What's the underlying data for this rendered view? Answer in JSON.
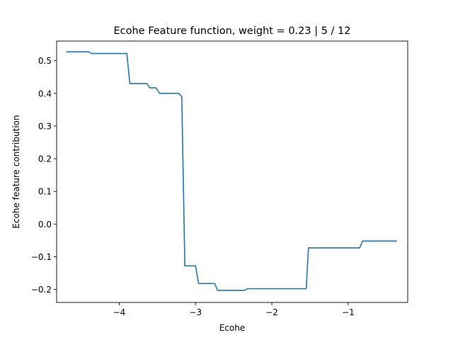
{
  "chart_data": {
    "type": "line",
    "title": "Ecohe Feature function, weight = 0.23 | 5 / 12",
    "xlabel": "Ecohe",
    "ylabel": "Ecohe feature contribution",
    "xlim": [
      -4.82,
      -0.22
    ],
    "ylim": [
      -0.24,
      0.56
    ],
    "xticks": [
      {
        "value": -4,
        "label": "−4"
      },
      {
        "value": -3,
        "label": "−3"
      },
      {
        "value": -2,
        "label": "−2"
      },
      {
        "value": -1,
        "label": "−1"
      }
    ],
    "yticks": [
      {
        "value": -0.2,
        "label": "−0.2"
      },
      {
        "value": -0.1,
        "label": "−0.1"
      },
      {
        "value": 0.0,
        "label": "0.0"
      },
      {
        "value": 0.1,
        "label": "0.1"
      },
      {
        "value": 0.2,
        "label": "0.2"
      },
      {
        "value": 0.3,
        "label": "0.3"
      },
      {
        "value": 0.4,
        "label": "0.4"
      },
      {
        "value": 0.5,
        "label": "0.5"
      }
    ],
    "grid": false,
    "series": [
      {
        "color": "#1f77b4",
        "x": [
          -4.69,
          -4.4,
          -4.36,
          -3.9,
          -3.86,
          -3.64,
          -3.6,
          -3.52,
          -3.47,
          -3.22,
          -3.18,
          -3.14,
          -3.0,
          -2.96,
          -2.75,
          -2.71,
          -2.36,
          -2.32,
          -1.55,
          -1.52,
          -0.85,
          -0.81,
          -0.36
        ],
        "y": [
          0.527,
          0.527,
          0.522,
          0.522,
          0.43,
          0.43,
          0.417,
          0.417,
          0.4,
          0.4,
          0.39,
          -0.128,
          -0.128,
          -0.182,
          -0.182,
          -0.203,
          -0.203,
          -0.198,
          -0.198,
          -0.073,
          -0.073,
          -0.052,
          -0.052
        ]
      }
    ]
  }
}
